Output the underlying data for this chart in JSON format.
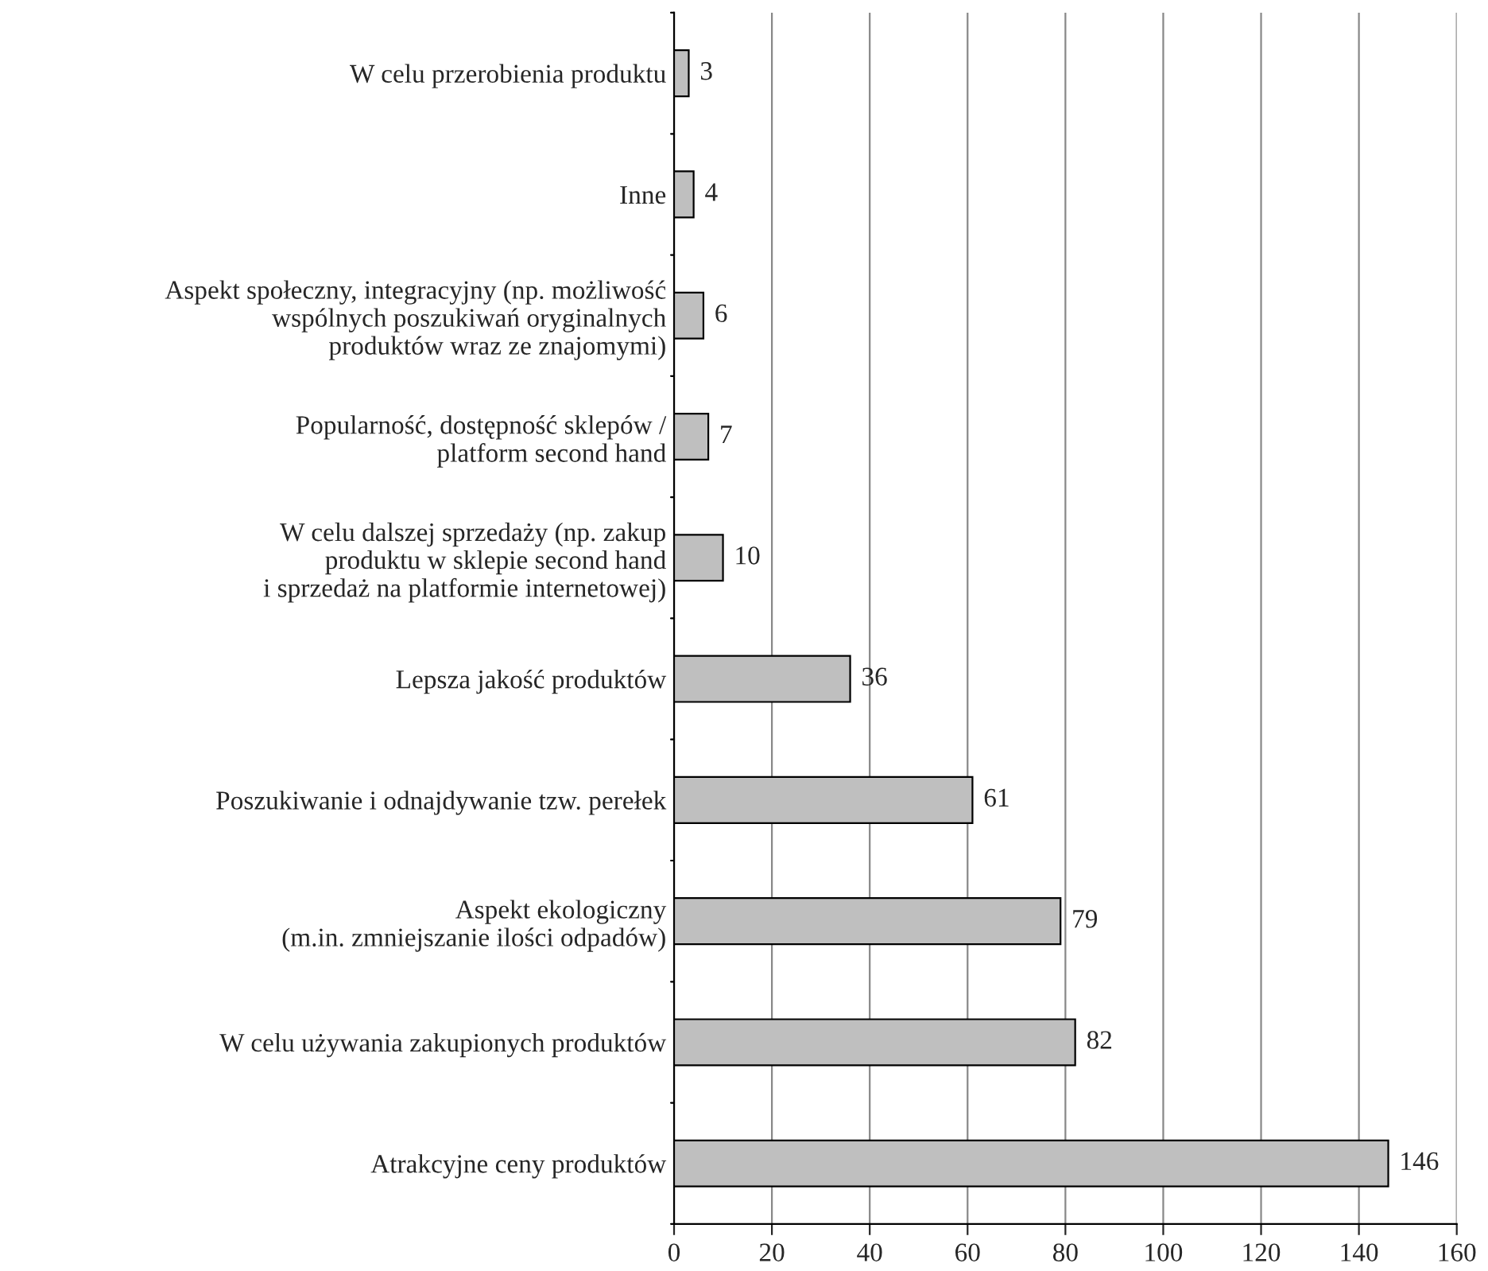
{
  "chart_data": {
    "type": "bar",
    "orientation": "horizontal",
    "categories": [
      "W celu przerobienia produktu",
      "Inne",
      "Aspekt społeczny, integracyjny (np. możliwość\nwspólnych poszukiwań oryginalnych\nproduktów wraz ze znajomymi)",
      "Popularność, dostępność sklepów /\nplatform second hand",
      "W celu dalszej sprzedaży (np. zakup\nproduktu w sklepie second hand\ni sprzedaż na platformie internetowej)",
      "Lepsza jakość produktów",
      "Poszukiwanie i odnajdywanie tzw. perełek",
      "Aspekt ekologiczny\n(m.in. zmniejszanie ilości odpadów)",
      "W celu używania zakupionych produktów",
      "Atrakcyjne ceny produktów"
    ],
    "values": [
      3,
      4,
      6,
      7,
      10,
      36,
      61,
      79,
      82,
      146
    ],
    "color": "#bfbfbf",
    "xlim": [
      0,
      160
    ],
    "xticks": [
      0,
      20,
      40,
      60,
      80,
      100,
      120,
      140,
      160
    ],
    "grid": "x",
    "data_labels": true
  }
}
